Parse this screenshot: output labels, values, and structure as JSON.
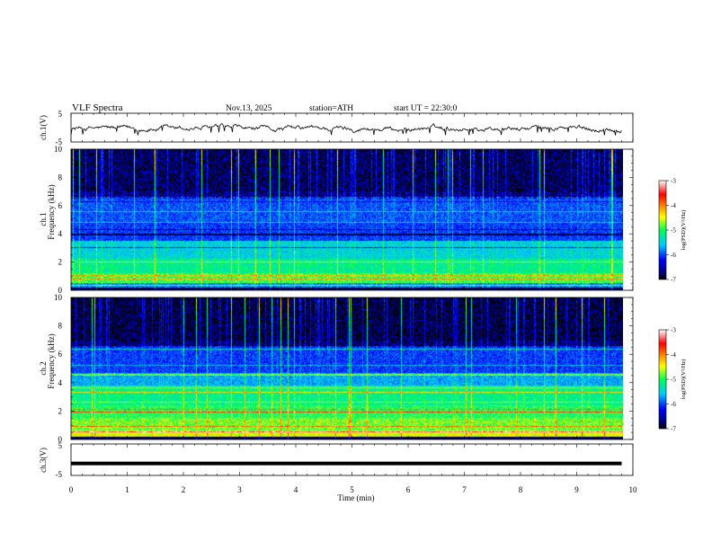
{
  "header": {
    "title": "VLF  Spectra",
    "date": "Nov.13, 2025",
    "station": "station=ATH",
    "start": "start  UT  =   22:30:0"
  },
  "chart_data": [
    {
      "type": "line",
      "name": "ch1-waveform",
      "ylabel": "ch.1(V)",
      "ylim": [
        -5,
        5
      ],
      "yticks": [
        "5",
        "-5"
      ],
      "xlim": [
        0,
        10
      ],
      "trace_range_min": [
        0,
        9.8
      ],
      "trace_level_V": [
        -1.5,
        0.8
      ],
      "color": "#000000"
    },
    {
      "type": "heatmap",
      "name": "ch1-spectrogram",
      "ylabel": "ch.1\nFrequency (kHz)",
      "ylabel_line1": "ch.1",
      "ylabel_line2": "Frequency (kHz)",
      "ylim": [
        0,
        10
      ],
      "yticks": [
        "0",
        "2",
        "4",
        "6",
        "8",
        "10"
      ],
      "xlim": [
        0,
        10
      ],
      "time_extent_min": 9.8,
      "colorbar": {
        "label": "log(PSD)(V²/Hz)",
        "range": [
          -7,
          -3
        ],
        "ticks": [
          "-3",
          "-4",
          "-5",
          "-6",
          "-7"
        ]
      }
    },
    {
      "type": "heatmap",
      "name": "ch2-spectrogram",
      "ylabel": "ch.2\nFrequency (kHz)",
      "ylabel_line1": "ch.2",
      "ylabel_line2": "Frequency (kHz)",
      "ylim": [
        0,
        10
      ],
      "yticks": [
        "0",
        "2",
        "4",
        "6",
        "8",
        "10"
      ],
      "xlim": [
        0,
        10
      ],
      "time_extent_min": 9.8,
      "colorbar": {
        "label": "log(PSD)(V²/Hz)",
        "range": [
          -7,
          -3
        ],
        "ticks": [
          "-3",
          "-4",
          "-5",
          "-6",
          "-7"
        ]
      }
    },
    {
      "type": "line",
      "name": "ch3-waveform",
      "ylabel": "ch.3(V)",
      "ylim": [
        -5,
        5
      ],
      "yticks": [
        "5",
        "-5"
      ],
      "xlim": [
        0,
        10
      ],
      "trace_range_min": [
        0,
        9.8
      ],
      "trace_level_V": -1.2,
      "color": "#000000"
    }
  ],
  "xaxis": {
    "label": "Time  (min)",
    "ticks": [
      "0",
      "1",
      "2",
      "3",
      "4",
      "5",
      "6",
      "7",
      "8",
      "9",
      "10"
    ]
  }
}
